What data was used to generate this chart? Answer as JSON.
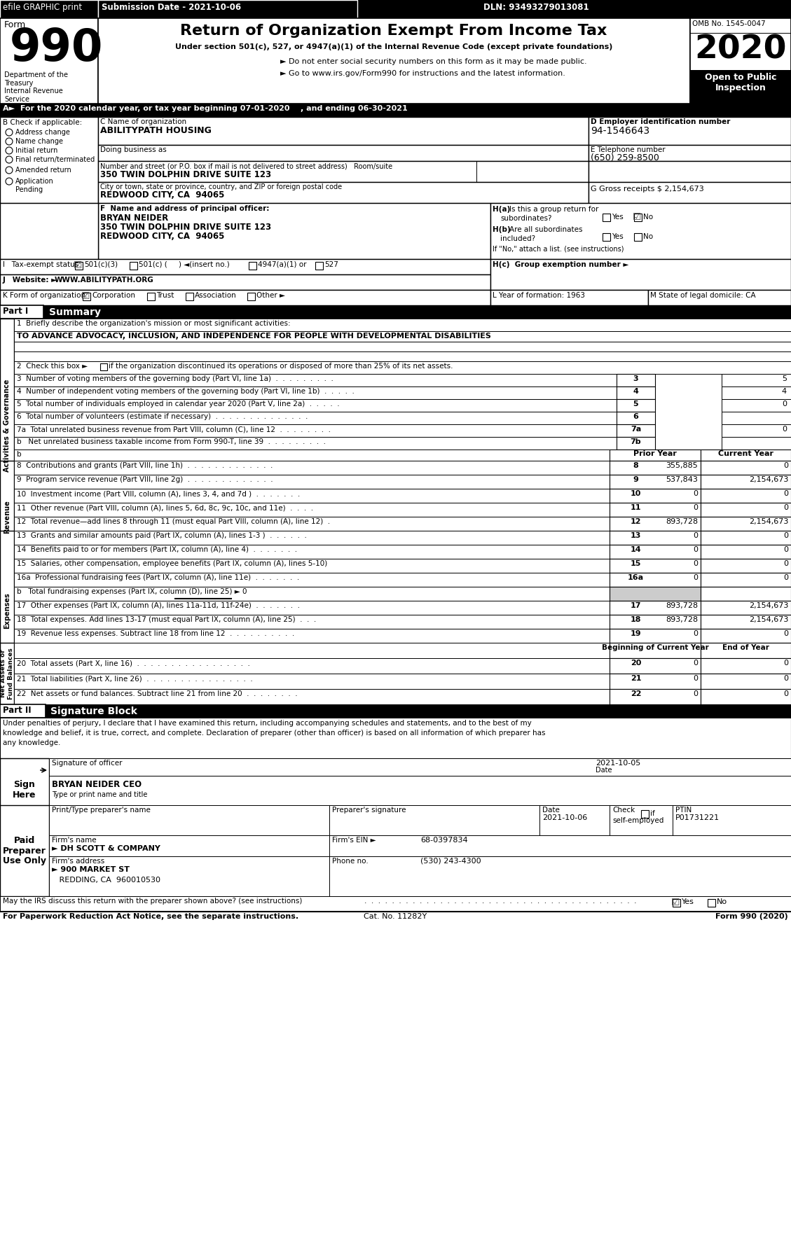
{
  "title": "Return of Organization Exempt From Income Tax",
  "form_number": "990",
  "year": "2020",
  "omb": "OMB No. 1545-0047",
  "dln": "DLN: 93493279013081",
  "submission_date": "Submission Date - 2021-10-06",
  "efile_text": "efile GRAPHIC print",
  "open_to_public": "Open to Public\nInspection",
  "under_section": "Under section 501(c), 527, or 4947(a)(1) of the Internal Revenue Code (except private foundations)",
  "bullet1": "► Do not enter social security numbers on this form as it may be made public.",
  "bullet2": "► Go to www.irs.gov/Form990 for instructions and the latest information.",
  "dept_text": "Department of the\nTreasury\nInternal Revenue\nService",
  "section_a": "A►  For the 2020 calendar year, or tax year beginning 07-01-2020    , and ending 06-30-2021",
  "b_check": "B Check if applicable:",
  "checkboxes_b": [
    "Address change",
    "Name change",
    "Initial return",
    "Final return/terminated",
    "Amended return",
    "Application\nPending"
  ],
  "c_label": "C Name of organization",
  "org_name": "ABILITYPATH HOUSING",
  "dba_label": "Doing business as",
  "address_label": "Number and street (or P.O. box if mail is not delivered to street address)   Room/suite",
  "address_value": "350 TWIN DOLPHIN DRIVE SUITE 123",
  "city_label": "City or town, state or province, country, and ZIP or foreign postal code",
  "city_value": "REDWOOD CITY, CA  94065",
  "d_label": "D Employer identification number",
  "ein": "94-1546643",
  "e_label": "E Telephone number",
  "phone": "(650) 259-8500",
  "g_label": "G Gross receipts $ 2,154,673",
  "f_label": "F  Name and address of principal officer:",
  "officer_name": "BRYAN NEIDER",
  "officer_addr1": "350 TWIN DOLPHIN DRIVE SUITE 123",
  "officer_addr2": "REDWOOD CITY, CA  94065",
  "ha_label": "H(a)  Is this a group return for",
  "ha_sub": "subordinates?",
  "hc_label": "H(c)  Group exemption number ►",
  "i_label": "I   Tax-exempt status:",
  "j_website": "WWW.ABILITYPATH.ORG",
  "k_label": "K Form of organization:",
  "l_label": "L Year of formation: 1963",
  "m_label": "M State of legal domicile: CA",
  "part1_label": "Part I",
  "part1_title": "Summary",
  "line1_label": "1  Briefly describe the organization's mission or most significant activities:",
  "line1_value": "TO ADVANCE ADVOCACY, INCLUSION, AND INDEPENDENCE FOR PEOPLE WITH DEVELOPMENTAL DISABILITIES",
  "line2_label": "2  Check this box ► if the organization discontinued its operations or disposed of more than 25% of its net assets.",
  "line3_label": "3  Number of voting members of the governing body (Part VI, line 1a)  .  .  .  .  .  .  .  .  .",
  "line3_num": "3",
  "line3_val": "5",
  "line4_label": "4  Number of independent voting members of the governing body (Part VI, line 1b)  .  .  .  .  .",
  "line4_num": "4",
  "line4_val": "4",
  "line5_label": "5  Total number of individuals employed in calendar year 2020 (Part V, line 2a)  .  .  .  .  .",
  "line5_num": "5",
  "line5_val": "0",
  "line6_label": "6  Total number of volunteers (estimate if necessary)  .  .  .  .  .  .  .  .  .  .  .  .  .  .",
  "line6_num": "6",
  "line6_val": "",
  "line7a_label": "7a  Total unrelated business revenue from Part VIII, column (C), line 12  .  .  .  .  .  .  .  .",
  "line7a_num": "7a",
  "line7a_val": "0",
  "line7b_label": "b   Net unrelated business taxable income from Form 990-T, line 39  .  .  .  .  .  .  .  .  .",
  "line7b_num": "7b",
  "line7b_val": "",
  "prior_year": "Prior Year",
  "current_year": "Current Year",
  "line8_label": "8  Contributions and grants (Part VIII, line 1h)  .  .  .  .  .  .  .  .  .  .  .  .  .",
  "line8_num": "8",
  "line8_prior": "355,885",
  "line8_current": "0",
  "line9_label": "9  Program service revenue (Part VIII, line 2g)  .  .  .  .  .  .  .  .  .  .  .  .  .",
  "line9_num": "9",
  "line9_prior": "537,843",
  "line9_current": "2,154,673",
  "line10_label": "10  Investment income (Part VIII, column (A), lines 3, 4, and 7d )  .  .  .  .  .  .  .",
  "line10_num": "10",
  "line10_prior": "0",
  "line10_current": "0",
  "line11_label": "11  Other revenue (Part VIII, column (A), lines 5, 6d, 8c, 9c, 10c, and 11e)  .  .  .  .",
  "line11_num": "11",
  "line11_prior": "0",
  "line11_current": "0",
  "line12_label": "12  Total revenue—add lines 8 through 11 (must equal Part VIII, column (A), line 12)  .",
  "line12_num": "12",
  "line12_prior": "893,728",
  "line12_current": "2,154,673",
  "line13_label": "13  Grants and similar amounts paid (Part IX, column (A), lines 1-3 )  .  .  .  .  .  .",
  "line13_num": "13",
  "line13_prior": "0",
  "line13_current": "0",
  "line14_label": "14  Benefits paid to or for members (Part IX, column (A), line 4)  .  .  .  .  .  .  .",
  "line14_num": "14",
  "line14_prior": "0",
  "line14_current": "0",
  "line15_label": "15  Salaries, other compensation, employee benefits (Part IX, column (A), lines 5-10)",
  "line15_num": "15",
  "line15_prior": "0",
  "line15_current": "0",
  "line16a_label": "16a  Professional fundraising fees (Part IX, column (A), line 11e)  .  .  .  .  .  .  .",
  "line16a_num": "16a",
  "line16a_prior": "0",
  "line16a_current": "0",
  "line16b_label": "b   Total fundraising expenses (Part IX, column (D), line 25) ► 0",
  "line17_label": "17  Other expenses (Part IX, column (A), lines 11a-11d, 11f-24e)  .  .  .  .  .  .  .",
  "line17_num": "17",
  "line17_prior": "893,728",
  "line17_current": "2,154,673",
  "line18_label": "18  Total expenses. Add lines 13-17 (must equal Part IX, column (A), line 25)  .  .  .",
  "line18_num": "18",
  "line18_prior": "893,728",
  "line18_current": "2,154,673",
  "line19_label": "19  Revenue less expenses. Subtract line 18 from line 12  .  .  .  .  .  .  .  .  .  .",
  "line19_num": "19",
  "line19_prior": "0",
  "line19_current": "0",
  "beg_year": "Beginning of Current Year",
  "end_year": "End of Year",
  "line20_label": "20  Total assets (Part X, line 16)  .  .  .  .  .  .  .  .  .  .  .  .  .  .  .  .  .",
  "line20_num": "20",
  "line20_beg": "0",
  "line20_end": "0",
  "line21_label": "21  Total liabilities (Part X, line 26)  .  .  .  .  .  .  .  .  .  .  .  .  .  .  .  .",
  "line21_num": "21",
  "line21_beg": "0",
  "line21_end": "0",
  "line22_label": "22  Net assets or fund balances. Subtract line 21 from line 20  .  .  .  .  .  .  .  .",
  "line22_num": "22",
  "line22_beg": "0",
  "line22_end": "0",
  "part2_label": "Part II",
  "part2_title": "Signature Block",
  "sig_text1": "Under penalties of perjury, I declare that I have examined this return, including accompanying schedules and statements, and to the best of my",
  "sig_text2": "knowledge and belief, it is true, correct, and complete. Declaration of preparer (other than officer) is based on all information of which preparer has",
  "sig_text3": "any knowledge.",
  "sig_label": "Signature of officer",
  "sig_date": "2021-10-05",
  "sig_date_label": "Date",
  "sig_name": "BRYAN NEIDER CEO",
  "sig_name_label": "Type or print name and title",
  "prep_name_label": "Print/Type preparer's name",
  "prep_sig_label": "Preparer's signature",
  "prep_date_label": "Date",
  "prep_date": "2021-10-06",
  "prep_check_label": "Check □ if\nself-employed",
  "prep_ptin_label": "PTIN",
  "prep_ptin": "P01731221",
  "firm_name_label": "Firm's name",
  "firm_name": "► DH SCOTT & COMPANY",
  "firm_ein_label": "Firm's EIN ►",
  "firm_ein": "68-0397834",
  "firm_addr_label": "Firm's address",
  "firm_addr": "► 900 MARKET ST",
  "firm_city": "REDDING, CA  960010530",
  "firm_phone_label": "Phone no.",
  "firm_phone": "(530) 243-4300",
  "paperwork_text": "For Paperwork Reduction Act Notice, see the separate instructions.",
  "cat_no": "Cat. No. 11282Y",
  "form_footer": "Form 990 (2020)"
}
